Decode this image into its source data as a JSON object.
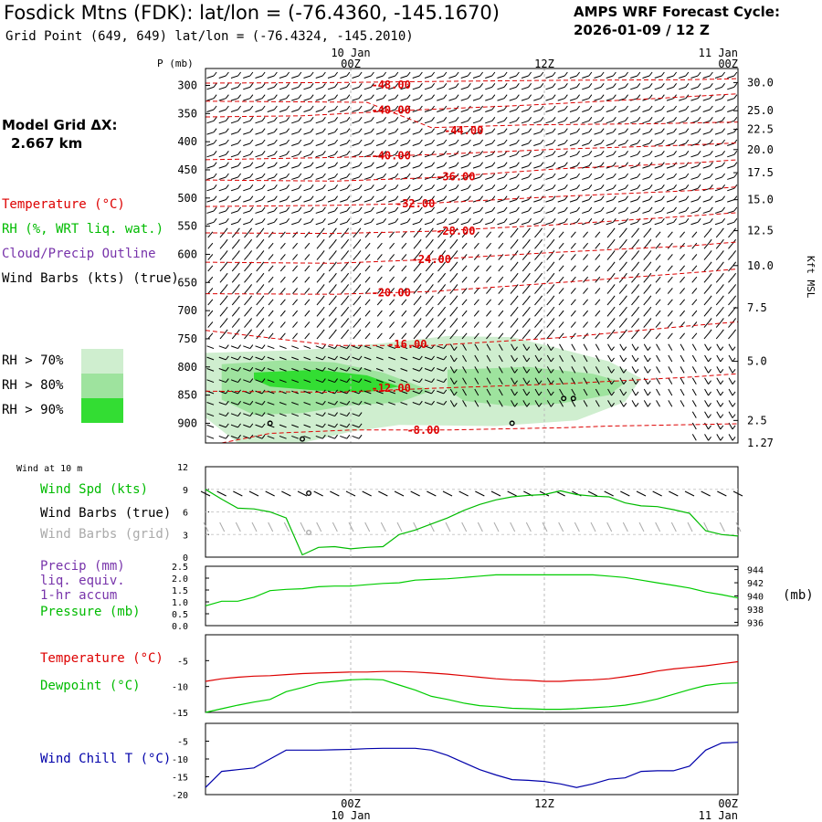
{
  "header": {
    "title": "Fosdick Mtns (FDK):  lat/lon = (-76.4360, -145.1670)",
    "subtitle": "Grid Point (649, 649) lat/lon = (-76.4324, -145.2010)",
    "cycle_label": "AMPS WRF Forecast Cycle:",
    "cycle_value": "2026-01-09 / 12  Z",
    "grid_label": "Model Grid ΔX:",
    "grid_value": "2.667 km"
  },
  "time_axis": {
    "top_dates": [
      "10 Jan",
      "11 Jan"
    ],
    "bottom_dates": [
      "10 Jan",
      "11 Jan"
    ],
    "ticks": [
      "00Z",
      "12Z",
      "00Z"
    ],
    "tick_hours": [
      9,
      21,
      33
    ],
    "range_hours": [
      0,
      33
    ]
  },
  "legend": {
    "temperature": "Temperature (°C)",
    "rh": "RH (%, WRT liq. wat.)",
    "cloud": "Cloud/Precip Outline",
    "barbs": "Wind Barbs (kts) (true)",
    "rh70": "RH > 70%",
    "rh80": "RH > 80%",
    "rh90": "RH > 90%"
  },
  "colors": {
    "temperature": "#dd0000",
    "rh": "#00bb00",
    "cloud": "#7733aa",
    "rh70": "#cfeecf",
    "rh80": "#9ee39e",
    "rh90": "#33dd33",
    "dewpoint": "#00cc00",
    "pressure": "#00cc00",
    "windchill": "#0000aa",
    "gridbarbs": "#aaaaaa"
  },
  "chart_data": [
    {
      "type": "contour",
      "name": "cross-section",
      "ylabel": "P (mb)",
      "ylabel_right": "Kft MSL",
      "p_range": [
        270,
        935
      ],
      "p_ticks": [
        300,
        350,
        400,
        450,
        500,
        550,
        600,
        650,
        700,
        750,
        800,
        850,
        900
      ],
      "height_ticks": [
        {
          "label": "30.0",
          "p": 295
        },
        {
          "label": "25.0",
          "p": 345
        },
        {
          "label": "22.5",
          "p": 378
        },
        {
          "label": "20.0",
          "p": 414
        },
        {
          "label": "17.5",
          "p": 455
        },
        {
          "label": "15.0",
          "p": 503
        },
        {
          "label": "12.5",
          "p": 558
        },
        {
          "label": "10.0",
          "p": 620
        },
        {
          "label": "7.5",
          "p": 695
        },
        {
          "label": "5.0",
          "p": 790
        },
        {
          "label": "2.5",
          "p": 895
        },
        {
          "label": "1.27",
          "p": 935
        }
      ],
      "isotherms": [
        {
          "label": "-48.00",
          "label_hour": 11.5,
          "label_p": 299,
          "pts": [
            [
              0,
              296
            ],
            [
              8,
              295
            ],
            [
              14,
              293
            ],
            [
              22,
              291
            ],
            [
              30,
              290
            ],
            [
              33,
              288
            ]
          ]
        },
        {
          "label": "-40.00",
          "label_hour": 11.5,
          "label_p": 344,
          "pts": [
            [
              0,
              356
            ],
            [
              6,
              354
            ],
            [
              12,
              345
            ],
            [
              20,
              335
            ],
            [
              28,
              323
            ],
            [
              33,
              315
            ]
          ]
        },
        {
          "label": "-44.00",
          "label_hour": 16,
          "label_p": 380,
          "pts": [
            [
              0,
              328
            ],
            [
              10,
              330
            ],
            [
              14,
              375
            ],
            [
              20,
              370
            ],
            [
              28,
              368
            ],
            [
              33,
              365
            ]
          ]
        },
        {
          "label": "-40.00",
          "label_hour": 11.5,
          "label_p": 425,
          "pts": [
            [
              0,
              432
            ],
            [
              8,
              428
            ],
            [
              14,
              423
            ],
            [
              22,
              413
            ],
            [
              30,
              406
            ],
            [
              33,
              402
            ]
          ]
        },
        {
          "label": "-36.00",
          "label_hour": 15.5,
          "label_p": 462,
          "pts": [
            [
              0,
              468
            ],
            [
              8,
              470
            ],
            [
              14,
              464
            ],
            [
              22,
              448
            ],
            [
              30,
              438
            ],
            [
              33,
              432
            ]
          ]
        },
        {
          "label": "-32.00",
          "label_hour": 13,
          "label_p": 510,
          "pts": [
            [
              0,
              515
            ],
            [
              8,
              513
            ],
            [
              14,
              509
            ],
            [
              22,
              497
            ],
            [
              30,
              487
            ],
            [
              33,
              480
            ]
          ]
        },
        {
          "label": "-28.00",
          "label_hour": 15.5,
          "label_p": 559,
          "pts": [
            [
              0,
              562
            ],
            [
              8,
              563
            ],
            [
              14,
              559
            ],
            [
              22,
              547
            ],
            [
              30,
              532
            ],
            [
              33,
              526
            ]
          ]
        },
        {
          "label": "-24.00",
          "label_hour": 14,
          "label_p": 609,
          "pts": [
            [
              0,
              614
            ],
            [
              8,
              616
            ],
            [
              14,
              609
            ],
            [
              22,
              596
            ],
            [
              30,
              585
            ],
            [
              33,
              578
            ]
          ]
        },
        {
          "label": "-20.00",
          "label_hour": 11.5,
          "label_p": 668,
          "pts": [
            [
              0,
              670
            ],
            [
              8,
              671
            ],
            [
              14,
              666
            ],
            [
              22,
              650
            ],
            [
              30,
              633
            ],
            [
              33,
              626
            ]
          ]
        },
        {
          "label": "-16.00",
          "label_hour": 12.5,
          "label_p": 760,
          "pts": [
            [
              0,
              735
            ],
            [
              8,
              762
            ],
            [
              14,
              762
            ],
            [
              22,
              748
            ],
            [
              30,
              727
            ],
            [
              33,
              720
            ]
          ]
        },
        {
          "label": "-12.00",
          "label_hour": 11.5,
          "label_p": 838,
          "pts": [
            [
              0,
              843
            ],
            [
              8,
              845
            ],
            [
              14,
              838
            ],
            [
              22,
              830
            ],
            [
              30,
              818
            ],
            [
              33,
              812
            ]
          ]
        },
        {
          "label": "-8.00",
          "label_hour": 13.5,
          "label_p": 912,
          "pts": [
            [
              1,
              935
            ],
            [
              4,
              918
            ],
            [
              9,
              912
            ],
            [
              15,
              912
            ],
            [
              20,
              909
            ],
            [
              22,
              908
            ],
            [
              25,
              905
            ],
            [
              33,
              901
            ]
          ]
        }
      ],
      "rh_areas": [
        {
          "level": ">70",
          "pts": [
            [
              0,
              775
            ],
            [
              6,
              770
            ],
            [
              11,
              758
            ],
            [
              15,
              745
            ],
            [
              19,
              747
            ],
            [
              22,
              768
            ],
            [
              25,
              790
            ],
            [
              27,
              820
            ],
            [
              26,
              862
            ],
            [
              23,
              895
            ],
            [
              18,
              905
            ],
            [
              12,
              903
            ],
            [
              9,
              915
            ],
            [
              6,
              935
            ],
            [
              2,
              935
            ],
            [
              0,
              890
            ]
          ]
        },
        {
          "level": ">80",
          "pts": [
            [
              1,
              795
            ],
            [
              5,
              788
            ],
            [
              8,
              792
            ],
            [
              11,
              810
            ],
            [
              14,
              842
            ],
            [
              12,
              863
            ],
            [
              9,
              868
            ],
            [
              6,
              882
            ],
            [
              3,
              885
            ],
            [
              1,
              858
            ]
          ]
        },
        {
          "level": ">80",
          "pts": [
            [
              15,
              805
            ],
            [
              20,
              800
            ],
            [
              24,
              812
            ],
            [
              26,
              828
            ],
            [
              25,
              850
            ],
            [
              22,
              865
            ],
            [
              19,
              870
            ],
            [
              16,
              860
            ],
            [
              15,
              840
            ]
          ]
        },
        {
          "level": ">90",
          "pts": [
            [
              3,
              810
            ],
            [
              7,
              805
            ],
            [
              10,
              815
            ],
            [
              12,
              835
            ],
            [
              10,
              845
            ],
            [
              7,
              842
            ],
            [
              4,
              835
            ],
            [
              3,
              822
            ]
          ]
        }
      ],
      "cloud_markers": [
        [
          4,
          900
        ],
        [
          6,
          928
        ],
        [
          19,
          900
        ],
        [
          22.2,
          856
        ],
        [
          22.8,
          856
        ]
      ]
    },
    {
      "type": "line",
      "name": "wind-speed",
      "title": "Wind at 10 m",
      "ylabel": "Wind Spd (kts)",
      "ylim": [
        0,
        12
      ],
      "yticks": [
        0,
        3,
        6,
        9,
        12
      ],
      "x": [
        0,
        1,
        2,
        3,
        4,
        5,
        6,
        7,
        8,
        9,
        10,
        11,
        12,
        13,
        14,
        15,
        16,
        17,
        18,
        19,
        20,
        21,
        22,
        23,
        24,
        25,
        26,
        27,
        28,
        29,
        30,
        31,
        32,
        33
      ],
      "values": [
        9,
        7.7,
        6.5,
        6.4,
        6,
        5.2,
        0.3,
        1.3,
        1.4,
        1.1,
        1.3,
        1.4,
        3,
        3.6,
        4.4,
        5.2,
        6.2,
        7,
        7.6,
        8,
        8.2,
        8.3,
        8.8,
        8.3,
        8.1,
        8,
        7.2,
        6.8,
        6.7,
        6.3,
        5.8,
        3.5,
        3,
        2.8
      ],
      "barb_legend_true": "Wind Barbs (true)",
      "barb_legend_grid": "Wind Barbs (grid)"
    },
    {
      "type": "line",
      "name": "precip-pressure",
      "ylabel": "Precip (mm)",
      "ylabel_extra": [
        "liq. equiv.",
        "1-hr accum"
      ],
      "y2label": "Pressure (mb)",
      "yticks": [
        "0.0",
        "0.5",
        "1.0",
        "1.5",
        "2.0",
        "2.5"
      ],
      "ylim": [
        0,
        2.5
      ],
      "y2ticks": [
        "936",
        "938",
        "940",
        "942",
        "944"
      ],
      "y2lim": [
        935.5,
        944.5
      ],
      "y2unit": "(mb)",
      "x": [
        0,
        1,
        2,
        3,
        4,
        5,
        6,
        7,
        8,
        9,
        10,
        11,
        12,
        13,
        14,
        15,
        16,
        17,
        18,
        19,
        20,
        21,
        22,
        23,
        24,
        25,
        26,
        27,
        28,
        29,
        30,
        31,
        32,
        33
      ],
      "pressure": [
        938.5,
        939.2,
        939.2,
        939.8,
        940.8,
        941,
        941.1,
        941.4,
        941.5,
        941.5,
        941.7,
        941.9,
        942,
        942.4,
        942.5,
        942.6,
        942.8,
        943,
        943.2,
        943.2,
        943.2,
        943.2,
        943.2,
        943.2,
        943.2,
        943,
        942.8,
        942.4,
        942,
        941.6,
        941.2,
        940.6,
        940.2,
        939.7
      ]
    },
    {
      "type": "line",
      "name": "temp-dewpoint",
      "series": [
        {
          "name": "Temperature (°C)",
          "values": [
            -9,
            -8.5,
            -8.2,
            -8,
            -7.9,
            -7.7,
            -7.5,
            -7.4,
            -7.3,
            -7.2,
            -7.2,
            -7.1,
            -7.1,
            -7.2,
            -7.4,
            -7.6,
            -7.9,
            -8.2,
            -8.5,
            -8.7,
            -8.8,
            -9,
            -9,
            -8.8,
            -8.7,
            -8.5,
            -8.1,
            -7.6,
            -7,
            -6.6,
            -6.3,
            -6,
            -5.6,
            -5.2
          ]
        },
        {
          "name": "Dewpoint (°C)",
          "values": [
            -15,
            -14.3,
            -13.6,
            -13,
            -12.5,
            -11,
            -10.2,
            -9.3,
            -9,
            -8.7,
            -8.6,
            -8.7,
            -9.7,
            -10.7,
            -11.9,
            -12.5,
            -13.2,
            -13.7,
            -13.9,
            -14.2,
            -14.3,
            -14.4,
            -14.4,
            -14.3,
            -14.1,
            -13.9,
            -13.6,
            -13.1,
            -12.4,
            -11.5,
            -10.6,
            -9.8,
            -9.4,
            -9.3
          ]
        }
      ],
      "ylim": [
        -15,
        0
      ],
      "yticks": [
        "-15",
        "-10",
        "-5"
      ],
      "x": [
        0,
        1,
        2,
        3,
        4,
        5,
        6,
        7,
        8,
        9,
        10,
        11,
        12,
        13,
        14,
        15,
        16,
        17,
        18,
        19,
        20,
        21,
        22,
        23,
        24,
        25,
        26,
        27,
        28,
        29,
        30,
        31,
        32,
        33
      ]
    },
    {
      "type": "line",
      "name": "wind-chill",
      "ylabel": "Wind Chill T (°C)",
      "ylim": [
        -20,
        0
      ],
      "yticks": [
        "-20",
        "-15",
        "-10",
        "-5"
      ],
      "x": [
        0,
        1,
        2,
        3,
        4,
        5,
        6,
        7,
        8,
        9,
        10,
        11,
        12,
        13,
        14,
        15,
        16,
        17,
        18,
        19,
        20,
        21,
        22,
        23,
        24,
        25,
        26,
        27,
        28,
        29,
        30,
        31,
        32,
        33
      ],
      "values": [
        -18,
        -13.5,
        -13,
        -12.5,
        -10,
        -7.5,
        -7.5,
        -7.5,
        -7.4,
        -7.3,
        -7.1,
        -7,
        -7,
        -7,
        -7.5,
        -9,
        -11,
        -13,
        -14.5,
        -15.8,
        -16,
        -16.3,
        -17,
        -18,
        -17,
        -15.7,
        -15.3,
        -13.5,
        -13.3,
        -13.3,
        -12,
        -7.5,
        -5.5,
        -5.3
      ]
    }
  ]
}
